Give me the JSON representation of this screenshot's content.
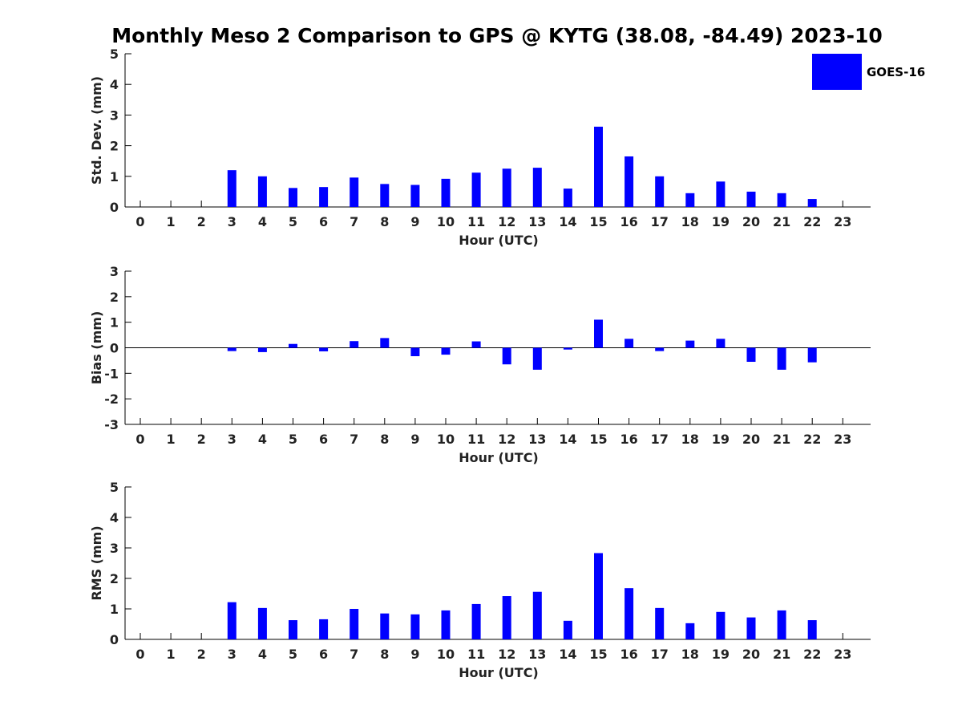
{
  "title": "Monthly Meso 2 Comparison to GPS @ KYTG (38.08, -84.49) 2023-10",
  "legend": {
    "label": "GOES-16",
    "color": "#0000ff"
  },
  "chart_data": [
    {
      "type": "bar",
      "ylabel": "Std. Dev. (mm)",
      "xlabel": "Hour (UTC)",
      "ylim": [
        0,
        5
      ],
      "yticks": [
        0,
        1,
        2,
        3,
        4,
        5
      ],
      "categories": [
        "0",
        "1",
        "2",
        "3",
        "4",
        "5",
        "6",
        "7",
        "8",
        "9",
        "10",
        "11",
        "12",
        "13",
        "14",
        "15",
        "16",
        "17",
        "18",
        "19",
        "20",
        "21",
        "22",
        "23"
      ],
      "values": [
        null,
        null,
        null,
        1.2,
        1.0,
        0.62,
        0.65,
        0.96,
        0.75,
        0.72,
        0.92,
        1.12,
        1.25,
        1.28,
        0.6,
        2.62,
        1.65,
        1.0,
        0.45,
        0.83,
        0.5,
        0.45,
        0.26,
        null
      ],
      "color": "#0000ff",
      "grid": false
    },
    {
      "type": "bar",
      "ylabel": "Bias (mm)",
      "xlabel": "Hour (UTC)",
      "ylim": [
        -3,
        3
      ],
      "yticks": [
        -3,
        -2,
        -1,
        0,
        1,
        2,
        3
      ],
      "categories": [
        "0",
        "1",
        "2",
        "3",
        "4",
        "5",
        "6",
        "7",
        "8",
        "9",
        "10",
        "11",
        "12",
        "13",
        "14",
        "15",
        "16",
        "17",
        "18",
        "19",
        "20",
        "21",
        "22",
        "23"
      ],
      "values": [
        null,
        null,
        null,
        -0.13,
        -0.17,
        0.15,
        -0.14,
        0.26,
        0.38,
        -0.33,
        -0.27,
        0.25,
        -0.65,
        -0.86,
        -0.07,
        1.1,
        0.35,
        -0.13,
        0.28,
        0.35,
        -0.55,
        -0.86,
        -0.57,
        null
      ],
      "color": "#0000ff",
      "grid": false
    },
    {
      "type": "bar",
      "ylabel": "RMS (mm)",
      "xlabel": "Hour (UTC)",
      "ylim": [
        0,
        5
      ],
      "yticks": [
        0,
        1,
        2,
        3,
        4,
        5
      ],
      "categories": [
        "0",
        "1",
        "2",
        "3",
        "4",
        "5",
        "6",
        "7",
        "8",
        "9",
        "10",
        "11",
        "12",
        "13",
        "14",
        "15",
        "16",
        "17",
        "18",
        "19",
        "20",
        "21",
        "22",
        "23"
      ],
      "values": [
        null,
        null,
        null,
        1.22,
        1.03,
        0.63,
        0.66,
        1.0,
        0.85,
        0.82,
        0.95,
        1.16,
        1.42,
        1.56,
        0.61,
        2.83,
        1.68,
        1.03,
        0.53,
        0.9,
        0.72,
        0.95,
        0.63,
        null
      ],
      "color": "#0000ff",
      "grid": false
    }
  ]
}
